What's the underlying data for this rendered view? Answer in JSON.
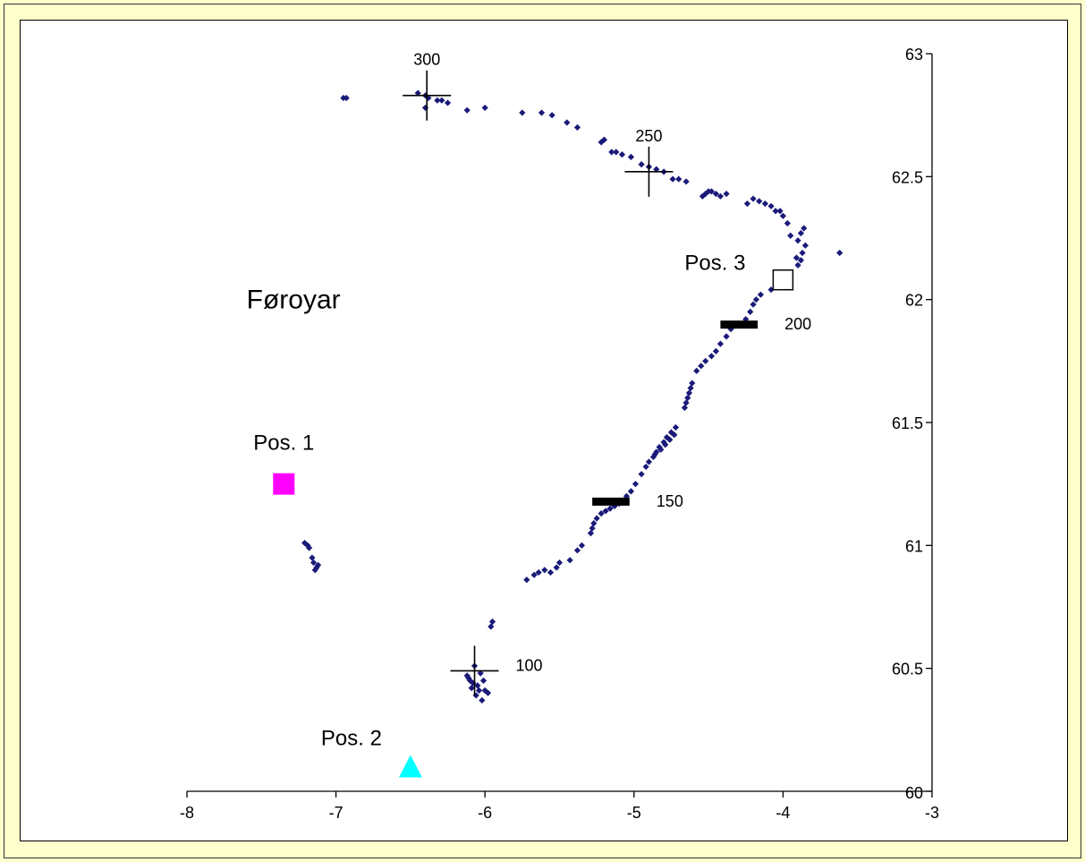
{
  "chart_data": {
    "type": "scatter",
    "title": "",
    "xlabel": "",
    "ylabel": "",
    "xlim": [
      -8,
      -3
    ],
    "ylim": [
      60,
      63
    ],
    "x_ticks": [
      -8,
      -7,
      -6,
      -5,
      -4,
      -3
    ],
    "y_ticks": [
      60,
      60.5,
      61,
      61.5,
      62,
      62.5,
      63
    ],
    "y_axis_position": "right (x = -3)",
    "grid": false,
    "legend": "none",
    "colors": {
      "track": "#1a1a7a",
      "pos1": "#ff00ff",
      "pos2": "#00ffff",
      "pos3": "#ffffff",
      "frame_background": "#ffffcc"
    },
    "series": [
      {
        "values": [
          [
            -7.21,
            61.01
          ],
          [
            -7.19,
            61.0
          ],
          [
            -7.18,
            60.99
          ],
          [
            -7.16,
            60.95
          ],
          [
            -7.15,
            60.93
          ],
          [
            -7.13,
            60.91
          ],
          [
            -7.12,
            60.92
          ],
          [
            -7.14,
            60.9
          ],
          [
            -6.07,
            60.51
          ],
          [
            -6.03,
            60.48
          ],
          [
            -6.01,
            60.45
          ],
          [
            -6.1,
            60.45
          ],
          [
            -6.12,
            60.47
          ],
          [
            -6.08,
            60.44
          ],
          [
            -6.05,
            60.43
          ],
          [
            -6.09,
            60.42
          ],
          [
            -6.04,
            60.41
          ],
          [
            -6.0,
            60.41
          ],
          [
            -6.06,
            60.39
          ],
          [
            -6.02,
            60.37
          ],
          [
            -5.98,
            60.4
          ],
          [
            -6.11,
            60.46
          ],
          [
            -5.96,
            60.67
          ],
          [
            -5.95,
            60.69
          ],
          [
            -5.72,
            60.86
          ],
          [
            -5.67,
            60.88
          ],
          [
            -5.64,
            60.89
          ],
          [
            -5.6,
            60.9
          ],
          [
            -5.56,
            60.89
          ],
          [
            -5.52,
            60.91
          ],
          [
            -5.5,
            60.93
          ],
          [
            -5.43,
            60.94
          ],
          [
            -5.38,
            60.98
          ],
          [
            -5.35,
            61.0
          ],
          [
            -5.29,
            61.05
          ],
          [
            -5.28,
            61.07
          ],
          [
            -5.27,
            61.09
          ],
          [
            -5.25,
            61.11
          ],
          [
            -5.22,
            61.13
          ],
          [
            -5.19,
            61.14
          ],
          [
            -5.16,
            61.15
          ],
          [
            -5.13,
            61.16
          ],
          [
            -5.1,
            61.17
          ],
          [
            -5.07,
            61.18
          ],
          [
            -5.05,
            61.2
          ],
          [
            -5.02,
            61.22
          ],
          [
            -4.99,
            61.25
          ],
          [
            -4.95,
            61.29
          ],
          [
            -4.92,
            61.32
          ],
          [
            -4.9,
            61.34
          ],
          [
            -4.87,
            61.36
          ],
          [
            -4.85,
            61.38
          ],
          [
            -4.83,
            61.4
          ],
          [
            -4.8,
            61.42
          ],
          [
            -4.78,
            61.44
          ],
          [
            -4.75,
            61.46
          ],
          [
            -4.72,
            61.48
          ],
          [
            -4.86,
            61.37
          ],
          [
            -4.82,
            61.39
          ],
          [
            -4.79,
            61.41
          ],
          [
            -4.76,
            61.43
          ],
          [
            -4.73,
            61.45
          ],
          [
            -4.66,
            61.56
          ],
          [
            -4.65,
            61.58
          ],
          [
            -4.64,
            61.6
          ],
          [
            -4.63,
            61.62
          ],
          [
            -4.62,
            61.64
          ],
          [
            -4.61,
            61.66
          ],
          [
            -4.58,
            61.71
          ],
          [
            -4.55,
            61.73
          ],
          [
            -4.52,
            61.75
          ],
          [
            -4.48,
            61.77
          ],
          [
            -4.45,
            61.79
          ],
          [
            -4.42,
            61.82
          ],
          [
            -4.38,
            61.85
          ],
          [
            -4.35,
            61.88
          ],
          [
            -4.3,
            61.9
          ],
          [
            -4.25,
            61.92
          ],
          [
            -4.22,
            61.95
          ],
          [
            -4.2,
            61.98
          ],
          [
            -4.18,
            62.0
          ],
          [
            -4.15,
            62.02
          ],
          [
            -4.08,
            62.04
          ],
          [
            -3.9,
            62.14
          ],
          [
            -3.88,
            62.16
          ],
          [
            -3.91,
            62.17
          ],
          [
            -3.87,
            62.19
          ],
          [
            -3.85,
            62.22
          ],
          [
            -3.9,
            62.24
          ],
          [
            -3.88,
            62.27
          ],
          [
            -3.86,
            62.29
          ],
          [
            -3.62,
            62.19
          ],
          [
            -3.95,
            62.26
          ],
          [
            -3.97,
            62.31
          ],
          [
            -4.0,
            62.34
          ],
          [
            -4.02,
            62.36
          ],
          [
            -4.05,
            62.36
          ],
          [
            -4.08,
            62.38
          ],
          [
            -4.12,
            62.39
          ],
          [
            -4.16,
            62.4
          ],
          [
            -4.2,
            62.41
          ],
          [
            -4.24,
            62.39
          ],
          [
            -4.38,
            62.43
          ],
          [
            -4.42,
            62.42
          ],
          [
            -4.45,
            62.43
          ],
          [
            -4.48,
            62.44
          ],
          [
            -4.5,
            62.44
          ],
          [
            -4.52,
            62.43
          ],
          [
            -4.54,
            62.42
          ],
          [
            -4.65,
            62.48
          ],
          [
            -4.7,
            62.49
          ],
          [
            -4.74,
            62.49
          ],
          [
            -4.8,
            62.52
          ],
          [
            -4.85,
            62.53
          ],
          [
            -4.9,
            62.54
          ],
          [
            -4.95,
            62.55
          ],
          [
            -5.02,
            62.58
          ],
          [
            -5.08,
            62.59
          ],
          [
            -5.12,
            62.6
          ],
          [
            -5.15,
            62.6
          ],
          [
            -5.2,
            62.65
          ],
          [
            -5.22,
            62.64
          ],
          [
            -5.38,
            62.7
          ],
          [
            -5.45,
            62.72
          ],
          [
            -5.55,
            62.75
          ],
          [
            -5.62,
            62.76
          ],
          [
            -5.75,
            62.76
          ],
          [
            -6.0,
            62.78
          ],
          [
            -6.12,
            62.77
          ],
          [
            -6.25,
            62.8
          ],
          [
            -6.29,
            62.81
          ],
          [
            -6.32,
            62.81
          ],
          [
            -6.38,
            62.82
          ],
          [
            -6.4,
            62.83
          ],
          [
            -6.45,
            62.84
          ],
          [
            -6.4,
            62.78
          ],
          [
            -6.93,
            62.82
          ],
          [
            -6.95,
            62.82
          ]
        ]
      }
    ],
    "markers": [
      {
        "label": "Pos. 1",
        "x": -7.35,
        "y": 61.25,
        "shape": "filled-square",
        "color": "#ff00ff"
      },
      {
        "label": "Pos. 2",
        "x": -6.5,
        "y": 60.1,
        "shape": "filled-triangle",
        "color": "#00ffff"
      },
      {
        "label": "Pos. 3",
        "x": -4.0,
        "y": 62.08,
        "shape": "open-square",
        "color": "#ffffff"
      }
    ],
    "crosses": [
      {
        "label": "300",
        "x": -6.39,
        "y": 62.83
      },
      {
        "label": "250",
        "x": -4.9,
        "y": 62.52
      },
      {
        "label": "100",
        "x": -6.07,
        "y": 60.49
      }
    ],
    "bars": [
      {
        "label": "150",
        "x_from": -5.28,
        "x_to": -5.03,
        "y": 61.18
      },
      {
        "label": "200",
        "x_from": -4.42,
        "x_to": -4.17,
        "y": 61.9
      }
    ],
    "annotations": [
      {
        "text": "Føroyar",
        "x": -7.6,
        "y": 62.0
      }
    ]
  }
}
